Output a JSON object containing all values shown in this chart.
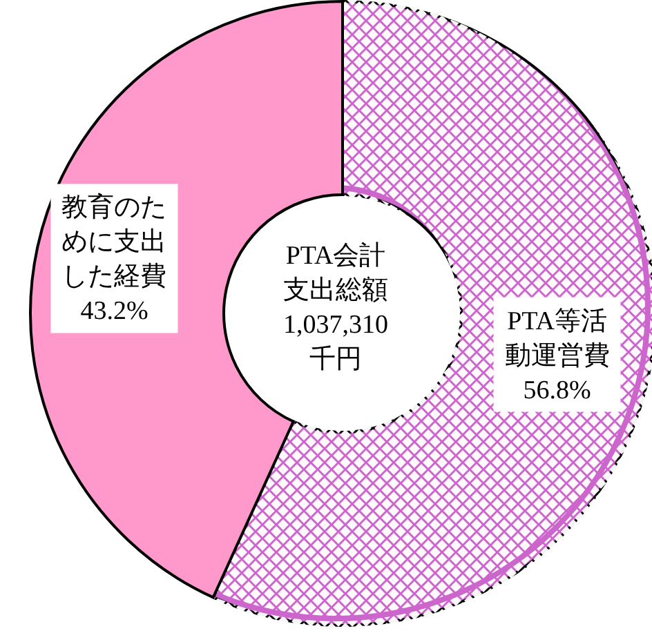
{
  "chart_data": {
    "type": "donut",
    "title": "PTA会計支出総額",
    "subtitle": "1,037,310千円",
    "categories": [
      "PTA等活動運営費",
      "教育のために支出した経費"
    ],
    "values": [
      56.8,
      43.2
    ],
    "colors": [
      "#cc66cc",
      "#ff99cc"
    ],
    "value_labels": [
      "56.8%",
      "43.2%"
    ]
  }
}
